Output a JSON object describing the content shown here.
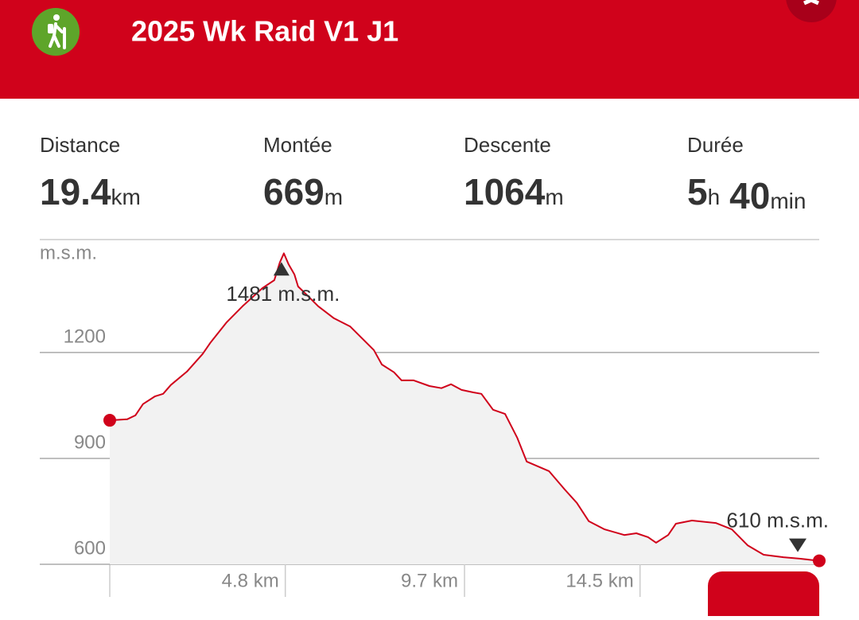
{
  "header": {
    "title": "2025 Wk Raid V1 J1"
  },
  "stats": [
    {
      "label": "Distance",
      "parts": [
        {
          "value": 19.4,
          "unit": "km"
        }
      ]
    },
    {
      "label": "Montée",
      "parts": [
        {
          "value": 669,
          "unit": "m"
        }
      ]
    },
    {
      "label": "Descente",
      "parts": [
        {
          "value": 1064,
          "unit": "m"
        }
      ]
    },
    {
      "label": "Durée",
      "parts": [
        {
          "value": 5,
          "unit": "h"
        },
        {
          "value": 40,
          "unit": "min"
        }
      ]
    }
  ],
  "chart_data": {
    "type": "area",
    "y_label": "m.s.m.",
    "color": "#d0021b",
    "fill": "#f2f2f2",
    "grid": true,
    "xlim": [
      0,
      19.4
    ],
    "ylim": [
      600,
      1520
    ],
    "yticks": [
      600,
      900,
      1200
    ],
    "xticks": [
      {
        "value": 4.8,
        "label": "4.8 km"
      },
      {
        "value": 9.7,
        "label": "9.7 km"
      },
      {
        "value": 14.5,
        "label": "14.5 km"
      }
    ],
    "x": [
      0,
      0.48,
      0.7,
      0.91,
      1.24,
      1.46,
      1.67,
      2.11,
      2.54,
      2.76,
      3.2,
      3.63,
      4.18,
      4.5,
      4.65,
      4.76,
      4.89,
      5.05,
      5.15,
      5.37,
      5.7,
      6.13,
      6.57,
      6.89,
      7.22,
      7.44,
      7.77,
      7.98,
      8.31,
      8.74,
      9.07,
      9.33,
      9.62,
      9.94,
      10.16,
      10.48,
      10.81,
      11.14,
      11.4,
      12.01,
      12.44,
      12.77,
      13.1,
      13.53,
      14.07,
      14.4,
      14.72,
      14.94,
      15.27,
      15.48,
      15.92,
      16.57,
      17.01,
      17.44,
      17.88,
      18.42,
      18.86,
      19.4
    ],
    "values": [
      1008,
      1011,
      1022,
      1054,
      1076,
      1083,
      1108,
      1146,
      1196,
      1229,
      1286,
      1331,
      1383,
      1405,
      1455,
      1481,
      1450,
      1421,
      1387,
      1365,
      1331,
      1297,
      1274,
      1241,
      1207,
      1166,
      1144,
      1121,
      1121,
      1105,
      1099,
      1110,
      1094,
      1087,
      1083,
      1038,
      1026,
      959,
      891,
      864,
      812,
      774,
      722,
      699,
      683,
      688,
      677,
      661,
      683,
      715,
      724,
      717,
      699,
      654,
      627,
      620,
      616,
      610
    ],
    "annotations": {
      "max": "1481 m.s.m.",
      "min": "610 m.s.m."
    }
  }
}
